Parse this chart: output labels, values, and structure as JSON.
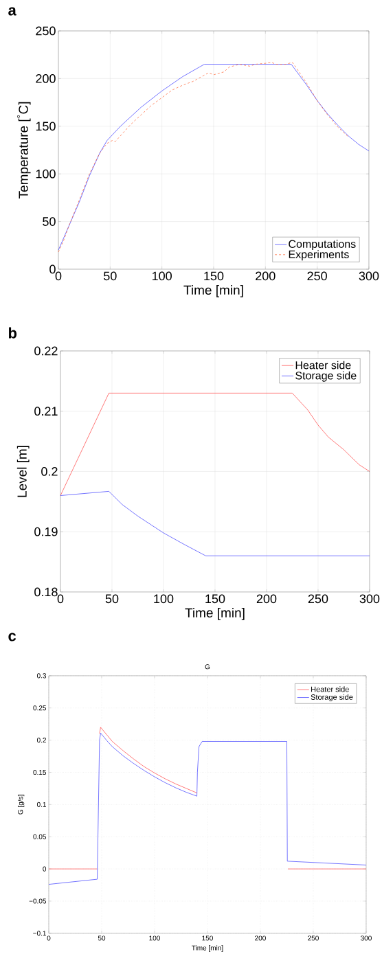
{
  "chart_data": [
    {
      "type": "line",
      "annotations": [
        "a"
      ],
      "xlabel": "Time [min]",
      "ylabel": "Temperature [$^{°}$C]",
      "xlim": [
        0,
        300
      ],
      "ylim": [
        0,
        250
      ],
      "xticks": [
        0,
        50,
        100,
        150,
        200,
        250,
        300
      ],
      "yticks": [
        0,
        50,
        100,
        150,
        200,
        250
      ],
      "grid": true,
      "legend": "bottom right",
      "series": [
        {
          "name": "Computations",
          "color": "#3a3aff",
          "x": [
            0,
            10,
            20,
            30,
            40,
            47,
            60,
            80,
            100,
            120,
            141,
            225,
            240,
            250,
            260,
            270,
            280,
            290,
            300
          ],
          "values": [
            20,
            45,
            70,
            98,
            122,
            135,
            150,
            170,
            187,
            202,
            215,
            215,
            193,
            177,
            163,
            151,
            140,
            131,
            124
          ]
        },
        {
          "name": "Experiments",
          "color": "#ff5a28",
          "line_style": "dashed",
          "x": [
            0,
            5,
            10,
            20,
            30,
            40,
            47,
            52,
            55,
            60,
            70,
            80,
            90,
            100,
            110,
            120,
            130,
            140,
            145,
            150,
            160,
            165,
            175,
            185,
            190,
            200,
            206,
            210,
            220,
            226,
            230,
            240,
            250,
            260,
            270,
            280
          ],
          "values": [
            18,
            30,
            45,
            72,
            100,
            122,
            132,
            135,
            134,
            140,
            152,
            162,
            172,
            180,
            188,
            193,
            197,
            203,
            206,
            204,
            207,
            212,
            215,
            213,
            215,
            216,
            217,
            215,
            215,
            217,
            211,
            195,
            177,
            162,
            149,
            139
          ]
        }
      ]
    },
    {
      "type": "line",
      "annotations": [
        "b"
      ],
      "xlabel": "Time [min]",
      "ylabel": "Level [m]",
      "xlim": [
        0,
        300
      ],
      "ylim": [
        0.18,
        0.22
      ],
      "xticks": [
        0,
        50,
        100,
        150,
        200,
        250,
        300
      ],
      "yticks": [
        0.18,
        0.19,
        0.2,
        0.21,
        0.22
      ],
      "grid": true,
      "legend": "top right",
      "series": [
        {
          "name": "Heater side",
          "color": "#ff4040",
          "x": [
            0,
            47,
            225,
            240,
            250,
            260,
            275,
            290,
            300
          ],
          "values": [
            0.196,
            0.213,
            0.213,
            0.2102,
            0.2077,
            0.2057,
            0.2036,
            0.2011,
            0.2
          ]
        },
        {
          "name": "Storage side",
          "color": "#3a3aff",
          "x": [
            0,
            47,
            60,
            75,
            100,
            120,
            141,
            300
          ],
          "values": [
            0.196,
            0.1967,
            0.1945,
            0.1926,
            0.1898,
            0.1879,
            0.186,
            0.186
          ]
        }
      ]
    },
    {
      "type": "line",
      "annotations": [
        "c"
      ],
      "title": "G",
      "xlabel": "Time [min]",
      "ylabel": "G [g/s]",
      "xlim": [
        0,
        300
      ],
      "ylim": [
        -0.1,
        0.3
      ],
      "xticks": [
        0,
        50,
        100,
        150,
        200,
        250,
        300
      ],
      "yticks": [
        {
          "value": -0.1,
          "label": "−0.1"
        },
        {
          "value": -0.05,
          "label": "−0.05"
        },
        0,
        0.05,
        0.1,
        0.15,
        0.2,
        0.25,
        0.3
      ],
      "grid": true,
      "legend": "top right",
      "series": [
        {
          "name": "Heater side",
          "color": "#ff4040",
          "x": [
            0,
            45.8,
            47,
            48,
            49,
            55,
            60,
            70,
            80,
            90,
            100,
            110,
            120,
            130,
            140,
            140.5,
            142,
            145,
            225,
            226,
            300
          ],
          "values": [
            0,
            0,
            null,
            0.21,
            0.22,
            0.208,
            0.198,
            0.184,
            0.171,
            0.159,
            0.149,
            0.14,
            0.132,
            0.125,
            0.118,
            null,
            null,
            null,
            null,
            0,
            0
          ]
        },
        {
          "name": "Storage side",
          "color": "#3a3aff",
          "x": [
            0,
            45.8,
            48,
            49,
            55,
            60,
            70,
            80,
            90,
            100,
            110,
            120,
            130,
            140,
            140.5,
            142,
            145,
            225,
            225.5,
            300
          ],
          "values": [
            -0.024,
            -0.016,
            0.2,
            0.211,
            0.199,
            0.19,
            0.176,
            0.164,
            0.153,
            0.143,
            0.134,
            0.126,
            0.119,
            0.113,
            0.15,
            0.19,
            0.198,
            0.198,
            0.012,
            0.006
          ]
        }
      ]
    }
  ]
}
